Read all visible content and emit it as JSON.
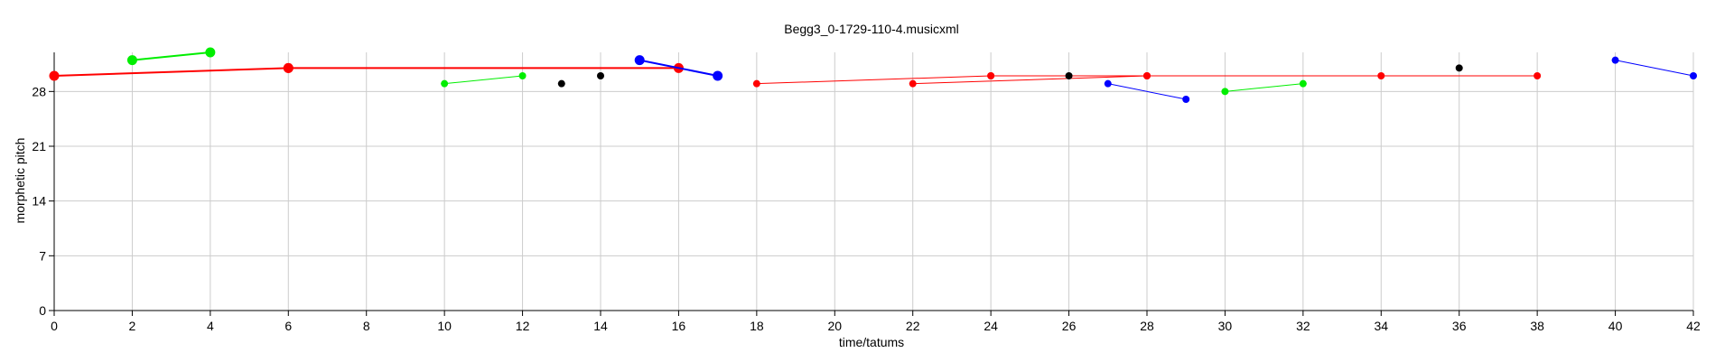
{
  "chart_data": {
    "type": "scatter",
    "title": "Begg3_0-1729-110-4.musicxml",
    "xlabel": "time/tatums",
    "ylabel": "morphetic pitch",
    "xlim": [
      0,
      42
    ],
    "ylim": [
      0,
      33
    ],
    "xticks": [
      0,
      2,
      4,
      6,
      8,
      10,
      12,
      14,
      16,
      18,
      20,
      22,
      24,
      26,
      28,
      30,
      32,
      34,
      36,
      38,
      40,
      42
    ],
    "yticks": [
      0,
      7,
      14,
      21,
      28
    ],
    "grid": true,
    "colors": {
      "red": "#ff0000",
      "green": "#00ee00",
      "blue": "#0000ff",
      "black": "#000000",
      "grid": "#cccccc"
    },
    "series": [
      {
        "color": "red",
        "size": "large",
        "points": [
          [
            0,
            30
          ],
          [
            6,
            31
          ]
        ]
      },
      {
        "color": "red",
        "size": "large",
        "points": [
          [
            6,
            31
          ],
          [
            16,
            31
          ]
        ]
      },
      {
        "color": "green",
        "size": "large",
        "points": [
          [
            2,
            32
          ],
          [
            4,
            33
          ]
        ]
      },
      {
        "color": "blue",
        "size": "large",
        "points": [
          [
            15,
            32
          ],
          [
            17,
            30
          ]
        ]
      },
      {
        "color": "green",
        "size": "small",
        "points": [
          [
            10,
            29
          ],
          [
            12,
            30
          ]
        ]
      },
      {
        "color": "black",
        "size": "small",
        "points": [
          [
            13,
            29
          ]
        ]
      },
      {
        "color": "black",
        "size": "small",
        "points": [
          [
            14,
            30
          ]
        ]
      },
      {
        "color": "red",
        "size": "small",
        "points": [
          [
            18,
            29
          ],
          [
            24,
            30
          ]
        ]
      },
      {
        "color": "red",
        "size": "small",
        "points": [
          [
            22,
            29
          ],
          [
            28,
            30
          ]
        ]
      },
      {
        "color": "red",
        "size": "small",
        "points": [
          [
            24,
            30
          ],
          [
            34,
            30
          ]
        ]
      },
      {
        "color": "red",
        "size": "small",
        "points": [
          [
            28,
            30
          ],
          [
            38,
            30
          ]
        ]
      },
      {
        "color": "black",
        "size": "small",
        "points": [
          [
            26,
            30
          ]
        ]
      },
      {
        "color": "blue",
        "size": "small",
        "points": [
          [
            27,
            29
          ],
          [
            29,
            27
          ]
        ]
      },
      {
        "color": "green",
        "size": "small",
        "points": [
          [
            30,
            28
          ],
          [
            32,
            29
          ]
        ]
      },
      {
        "color": "black",
        "size": "small",
        "points": [
          [
            36,
            31
          ]
        ]
      },
      {
        "color": "blue",
        "size": "small",
        "points": [
          [
            40,
            32
          ],
          [
            42,
            30
          ]
        ]
      }
    ]
  }
}
